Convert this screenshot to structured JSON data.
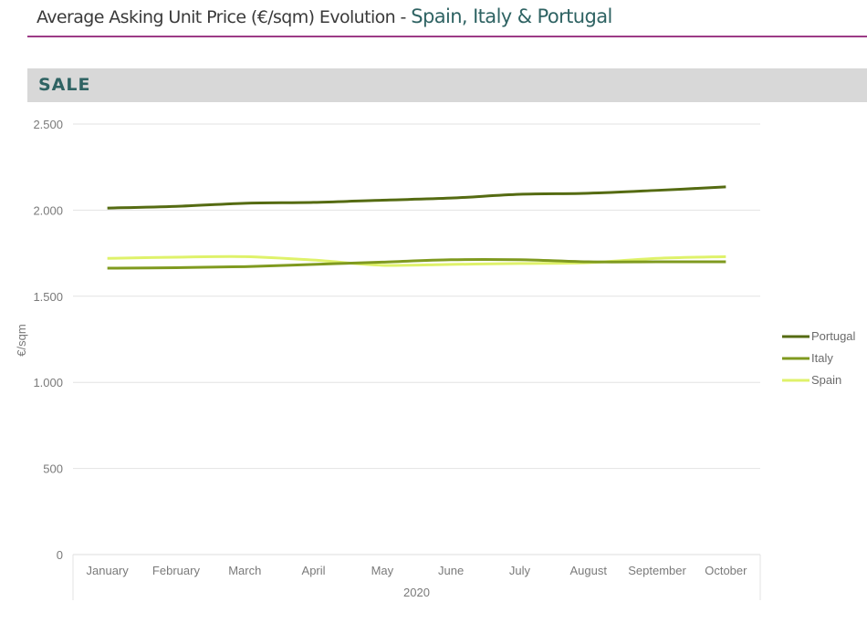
{
  "header": {
    "title_main": "Average Asking Unit Price (€/sqm) Evolution - ",
    "title_accent": "Spain, Italy & Portugal",
    "accent_color": "#2f6363",
    "rule_color": "#9c3b86"
  },
  "section": {
    "label": "SALE"
  },
  "chart_data": {
    "type": "line",
    "title": "Average Asking Unit Price (€/sqm) Evolution - Spain, Italy & Portugal",
    "xlabel": "2020",
    "ylabel": "€/sqm",
    "categories": [
      "January",
      "February",
      "March",
      "April",
      "May",
      "June",
      "July",
      "August",
      "September",
      "October"
    ],
    "ylim": [
      0,
      2500
    ],
    "yticks": [
      0,
      500,
      1000,
      1500,
      2000,
      2500
    ],
    "ytick_labels": [
      "0",
      "500",
      "1.000",
      "1.500",
      "2.000",
      "2.500"
    ],
    "grid": true,
    "legend_position": "right",
    "series": [
      {
        "name": "Portugal",
        "color": "#556b12",
        "values": [
          2012,
          2022,
          2040,
          2045,
          2058,
          2070,
          2092,
          2098,
          2115,
          2135
        ]
      },
      {
        "name": "Italy",
        "color": "#7f9a1f",
        "values": [
          1663,
          1666,
          1672,
          1685,
          1698,
          1712,
          1712,
          1700,
          1700,
          1700
        ]
      },
      {
        "name": "Spain",
        "color": "#dff26a",
        "values": [
          1720,
          1727,
          1730,
          1710,
          1680,
          1685,
          1690,
          1695,
          1720,
          1730
        ]
      }
    ]
  }
}
